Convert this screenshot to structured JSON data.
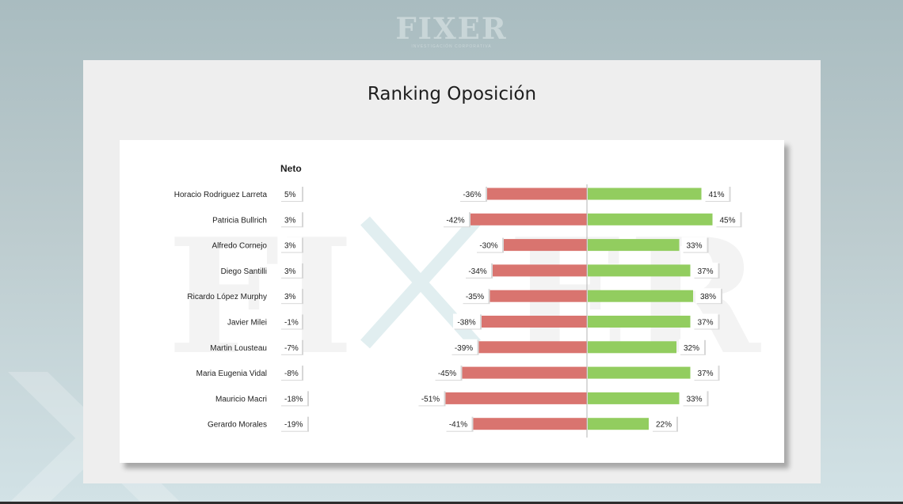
{
  "brand": {
    "logo_text": "FIXER",
    "logo_subtext": "INVESTIGACIÓN CORPORATIVA"
  },
  "slide": {
    "title": "Ranking Oposición"
  },
  "colors": {
    "negative": "#d9746f",
    "positive": "#92cd5f",
    "divider": "#b4b4b4"
  },
  "chart_data": {
    "type": "bar",
    "orientation": "horizontal-diverging",
    "neto_header": "Neto",
    "categories": [
      "Horacio Rodriguez Larreta",
      "Patricia Bullrich",
      "Alfredo Cornejo",
      "Diego Santilli",
      "Ricardo López Murphy",
      "Javier Milei",
      "Martin Lousteau",
      "Maria Eugenia Vidal",
      "Mauricio Macri",
      "Gerardo Morales"
    ],
    "neto_values": [
      5,
      3,
      3,
      3,
      3,
      -1,
      -7,
      -8,
      -18,
      -19
    ],
    "neto_labels": [
      "5%",
      "3%",
      "3%",
      "3%",
      "3%",
      "-1%",
      "-7%",
      "-8%",
      "-18%",
      "-19%"
    ],
    "series": [
      {
        "values": [
          -36,
          -42,
          -30,
          -34,
          -35,
          -38,
          -39,
          -45,
          -51,
          -41
        ],
        "labels": [
          "-36%",
          "-42%",
          "-30%",
          "-34%",
          "-35%",
          "-38%",
          "-39%",
          "-45%",
          "-51%",
          "-41%"
        ]
      },
      {
        "values": [
          41,
          45,
          33,
          37,
          38,
          37,
          32,
          37,
          33,
          22
        ],
        "labels": [
          "41%",
          "45%",
          "33%",
          "37%",
          "38%",
          "37%",
          "32%",
          "37%",
          "33%",
          "22%"
        ]
      }
    ],
    "unit": "%",
    "xlim": [
      -51,
      51
    ],
    "grid": false,
    "legend": "none"
  }
}
